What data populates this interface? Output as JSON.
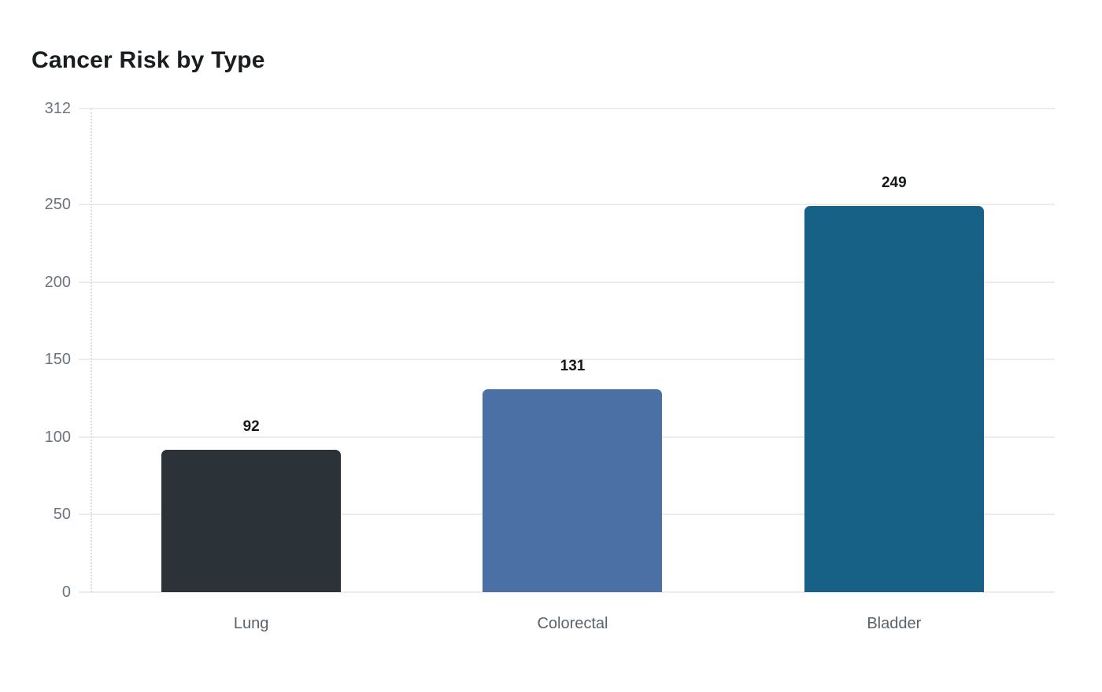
{
  "chart": {
    "title": "Cancer Risk by Type"
  },
  "chart_data": {
    "type": "bar",
    "title": "Cancer Risk by Type",
    "categories": [
      "Lung",
      "Colorectal",
      "Bladder"
    ],
    "values": [
      92,
      131,
      249
    ],
    "bar_colors": [
      "#2c3338",
      "#4a70a6",
      "#176186"
    ],
    "yticks": [
      0,
      50,
      100,
      150,
      200,
      250,
      312
    ],
    "ylim": [
      0,
      312
    ],
    "xlabel": "",
    "ylabel": "",
    "grid": "horizontal-light",
    "legend_position": "none",
    "value_labels_shown": true,
    "colors": {
      "title_text": "#1a1d20",
      "tick_text": "#6b7480",
      "category_text": "#5a626c",
      "value_text": "#16181b",
      "gridline": "#ececec",
      "axis_line": "#dcdee0",
      "background": "#ffffff"
    }
  }
}
